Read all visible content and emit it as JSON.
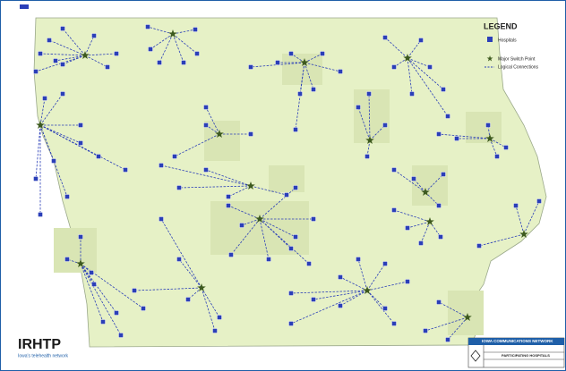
{
  "legend": {
    "title": "LEGEND",
    "items": [
      "Hospitals",
      "Major Switch Point",
      "Logical Connections"
    ]
  },
  "logo": {
    "name": "IRHTP",
    "tagline": "Iowa's telehealth network"
  },
  "title_block": {
    "org": "IOWA COMMUNICATIONS NETWORK",
    "subtitle": "PARTICIPATING HOSPITALS"
  }
}
